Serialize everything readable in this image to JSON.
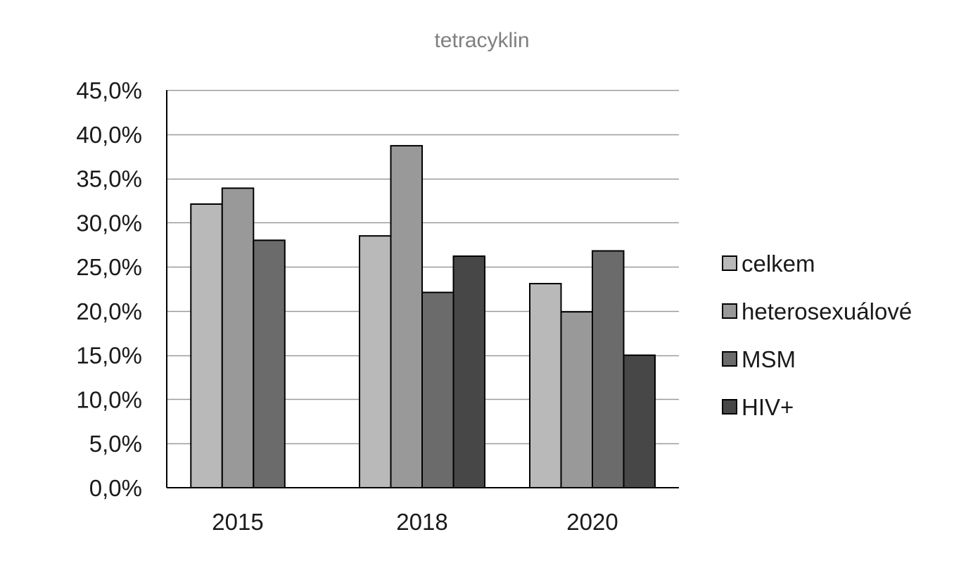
{
  "chart_data": {
    "type": "bar",
    "title": "tetracyklin",
    "xlabel": "",
    "ylabel": "",
    "categories": [
      "2015",
      "2018",
      "2020"
    ],
    "series": [
      {
        "name": "celkem",
        "color": "#b9b9b9",
        "values": [
          32.1,
          28.5,
          23.1
        ]
      },
      {
        "name": "heterosexuálové",
        "color": "#999999",
        "values": [
          33.9,
          38.7,
          19.9
        ]
      },
      {
        "name": "MSM",
        "color": "#6b6b6b",
        "values": [
          28.0,
          22.1,
          26.8
        ]
      },
      {
        "name": "HIV+",
        "color": "#474747",
        "values": [
          null,
          26.2,
          15.0
        ]
      }
    ],
    "ylim": [
      0,
      45
    ],
    "yticks": [
      0,
      5,
      10,
      15,
      20,
      25,
      30,
      35,
      40,
      45
    ],
    "ytick_labels": [
      "0,0%",
      "5,0%",
      "10,0%",
      "15,0%",
      "20,0%",
      "25,0%",
      "30,0%",
      "35,0%",
      "40,0%",
      "45,0%"
    ],
    "grid": true,
    "legend_position": "right"
  }
}
